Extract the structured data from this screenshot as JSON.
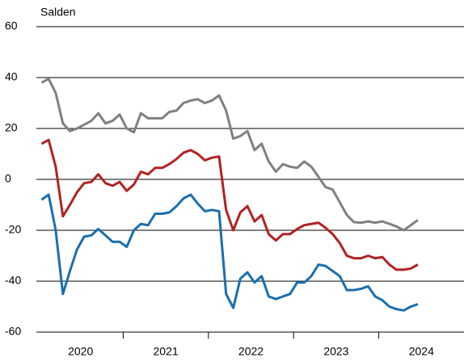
{
  "chart_data": {
    "type": "line",
    "ylabel": "Salden",
    "x": [
      2020.042,
      2020.125,
      2020.208,
      2020.292,
      2020.375,
      2020.458,
      2020.542,
      2020.625,
      2020.708,
      2020.792,
      2020.875,
      2020.958,
      2021.042,
      2021.125,
      2021.208,
      2021.292,
      2021.375,
      2021.458,
      2021.542,
      2021.625,
      2021.708,
      2021.792,
      2021.875,
      2021.958,
      2022.042,
      2022.125,
      2022.208,
      2022.292,
      2022.375,
      2022.458,
      2022.542,
      2022.625,
      2022.708,
      2022.792,
      2022.875,
      2022.958,
      2023.042,
      2023.125,
      2023.208,
      2023.292,
      2023.375,
      2023.458,
      2023.542,
      2023.625,
      2023.708,
      2023.792,
      2023.875,
      2023.958,
      2024.042,
      2024.125,
      2024.208,
      2024.292,
      2024.375,
      2024.458
    ],
    "xlim": [
      2020,
      2025
    ],
    "xticks": [
      2021,
      2022,
      2023,
      2024
    ],
    "xtick_labels": [
      {
        "value": 2020.5,
        "label": "2020"
      },
      {
        "value": 2021.5,
        "label": "2021"
      },
      {
        "value": 2022.5,
        "label": "2022"
      },
      {
        "value": 2023.5,
        "label": "2023"
      },
      {
        "value": 2024.5,
        "label": "2024"
      }
    ],
    "ylim": [
      -60,
      60
    ],
    "yticks": [
      -60,
      -40,
      -20,
      0,
      20,
      40,
      60
    ],
    "grid": true,
    "series": [
      {
        "color": "#808080",
        "values": [
          38,
          39.5,
          34,
          22,
          19,
          20,
          21.5,
          23,
          26,
          22,
          23,
          25.5,
          20,
          18.5,
          26,
          24,
          24,
          24,
          26.5,
          27,
          30,
          31,
          31.5,
          30,
          31,
          33,
          27,
          16,
          17,
          19,
          11.5,
          14,
          7,
          3,
          6,
          5,
          4.5,
          7,
          5,
          1,
          -3,
          -4,
          -9,
          -14,
          -16.8,
          -17,
          -16.5,
          -17,
          -16.5,
          -17.5,
          -18.5,
          -20,
          -18,
          -16
        ]
      },
      {
        "color": "#b22222",
        "values": [
          14,
          15.5,
          5,
          -14.5,
          -10,
          -5,
          -1.5,
          -1,
          2,
          -1.5,
          -2.5,
          -1,
          -4.5,
          -2,
          3,
          2,
          4.5,
          4.5,
          6,
          8,
          10.5,
          11.5,
          10,
          7.5,
          8.5,
          9,
          -12,
          -20,
          -13,
          -10.5,
          -16.5,
          -14,
          -21.5,
          -24,
          -21.5,
          -21.5,
          -19.5,
          -18,
          -17.5,
          -17,
          -19,
          -21.5,
          -25,
          -30,
          -31,
          -31,
          -30,
          -31,
          -30.5,
          -33.5,
          -35.5,
          -35.5,
          -35,
          -33.5
        ]
      },
      {
        "color": "#1a6faf",
        "values": [
          -8,
          -6,
          -20,
          -45,
          -36,
          -27.5,
          -22.5,
          -22,
          -19.5,
          -22,
          -24.5,
          -24.5,
          -26.5,
          -20,
          -17.5,
          -18,
          -13.5,
          -13.5,
          -13,
          -10.5,
          -7.5,
          -6,
          -9.5,
          -12.5,
          -12,
          -12.5,
          -45,
          -50.5,
          -39,
          -36.5,
          -40.5,
          -38,
          -46,
          -47,
          -46,
          -45,
          -40.5,
          -40.5,
          -38,
          -33.5,
          -34,
          -36,
          -38,
          -43.5,
          -43.5,
          -43,
          -42,
          -46,
          -47.5,
          -50,
          -51,
          -51.5,
          -50,
          -49
        ]
      }
    ]
  }
}
